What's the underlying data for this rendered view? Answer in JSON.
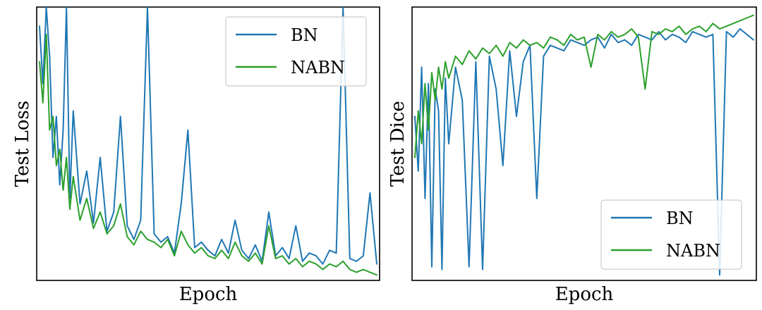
{
  "chart_data": [
    {
      "type": "line",
      "xlabel": "Epoch",
      "ylabel": "Test Loss",
      "xlim": [
        0,
        100
      ],
      "ylim": [
        0,
        1
      ],
      "ticks_visible": false,
      "grid": false,
      "legend_position": "top-right",
      "series": [
        {
          "name": "BN",
          "color": "#1f77b4",
          "x": [
            0,
            1,
            2,
            3,
            4,
            5,
            6,
            7,
            8,
            9,
            10,
            12,
            14,
            16,
            18,
            20,
            22,
            24,
            26,
            28,
            30,
            32,
            34,
            36,
            38,
            40,
            42,
            44,
            46,
            48,
            50,
            52,
            54,
            56,
            58,
            60,
            62,
            64,
            66,
            68,
            70,
            72,
            74,
            76,
            78,
            80,
            82,
            84,
            86,
            88,
            90,
            92,
            94,
            96,
            98,
            100
          ],
          "y": [
            0.93,
            0.72,
            1.0,
            0.82,
            0.45,
            0.6,
            0.35,
            0.55,
            1.0,
            0.3,
            0.62,
            0.28,
            0.4,
            0.21,
            0.45,
            0.18,
            0.25,
            0.6,
            0.2,
            0.15,
            0.22,
            1.0,
            0.17,
            0.14,
            0.16,
            0.1,
            0.28,
            0.55,
            0.12,
            0.14,
            0.11,
            0.09,
            0.15,
            0.1,
            0.22,
            0.11,
            0.08,
            0.13,
            0.07,
            0.25,
            0.09,
            0.12,
            0.08,
            0.2,
            0.07,
            0.1,
            0.09,
            0.06,
            0.11,
            0.1,
            1.0,
            0.08,
            0.07,
            0.09,
            0.32,
            0.06
          ]
        },
        {
          "name": "NABN",
          "color": "#2ca02c",
          "x": [
            0,
            1,
            2,
            3,
            4,
            5,
            6,
            7,
            8,
            9,
            10,
            12,
            14,
            16,
            18,
            20,
            22,
            24,
            26,
            28,
            30,
            32,
            34,
            36,
            38,
            40,
            42,
            44,
            46,
            48,
            50,
            52,
            54,
            56,
            58,
            60,
            62,
            64,
            66,
            68,
            70,
            72,
            74,
            76,
            78,
            80,
            82,
            84,
            86,
            88,
            90,
            92,
            94,
            96,
            98,
            100
          ],
          "y": [
            0.8,
            0.65,
            0.9,
            0.55,
            0.6,
            0.42,
            0.48,
            0.33,
            0.45,
            0.26,
            0.38,
            0.22,
            0.3,
            0.19,
            0.25,
            0.17,
            0.2,
            0.28,
            0.16,
            0.13,
            0.18,
            0.15,
            0.14,
            0.12,
            0.15,
            0.09,
            0.18,
            0.13,
            0.1,
            0.12,
            0.09,
            0.08,
            0.11,
            0.08,
            0.14,
            0.09,
            0.07,
            0.1,
            0.06,
            0.2,
            0.08,
            0.09,
            0.06,
            0.08,
            0.05,
            0.07,
            0.06,
            0.04,
            0.06,
            0.05,
            0.07,
            0.04,
            0.03,
            0.04,
            0.03,
            0.02
          ]
        }
      ]
    },
    {
      "type": "line",
      "xlabel": "Epoch",
      "ylabel": "Test Dice",
      "xlim": [
        0,
        100
      ],
      "ylim": [
        0,
        1
      ],
      "ticks_visible": false,
      "grid": false,
      "legend_position": "bottom-right",
      "series": [
        {
          "name": "BN",
          "color": "#1f77b4",
          "x": [
            0,
            1,
            2,
            3,
            4,
            5,
            6,
            7,
            8,
            9,
            10,
            12,
            14,
            16,
            18,
            20,
            22,
            24,
            26,
            28,
            30,
            32,
            34,
            36,
            38,
            40,
            42,
            44,
            46,
            48,
            50,
            52,
            54,
            56,
            58,
            60,
            62,
            64,
            66,
            68,
            70,
            72,
            74,
            76,
            78,
            80,
            82,
            84,
            86,
            88,
            90,
            92,
            94,
            96,
            98,
            100
          ],
          "y": [
            0.6,
            0.4,
            0.78,
            0.3,
            0.72,
            0.05,
            0.7,
            0.62,
            0.04,
            0.74,
            0.5,
            0.78,
            0.66,
            0.05,
            0.8,
            0.04,
            0.82,
            0.7,
            0.42,
            0.84,
            0.6,
            0.8,
            0.86,
            0.3,
            0.82,
            0.86,
            0.85,
            0.84,
            0.88,
            0.87,
            0.86,
            0.88,
            0.89,
            0.85,
            0.9,
            0.87,
            0.88,
            0.86,
            0.9,
            0.89,
            0.88,
            0.91,
            0.88,
            0.9,
            0.89,
            0.87,
            0.91,
            0.9,
            0.89,
            0.9,
            0.02,
            0.91,
            0.89,
            0.92,
            0.9,
            0.88
          ]
        },
        {
          "name": "NABN",
          "color": "#2ca02c",
          "x": [
            0,
            1,
            2,
            3,
            4,
            5,
            6,
            7,
            8,
            9,
            10,
            12,
            14,
            16,
            18,
            20,
            22,
            24,
            26,
            28,
            30,
            32,
            34,
            36,
            38,
            40,
            42,
            44,
            46,
            48,
            50,
            52,
            54,
            56,
            58,
            60,
            62,
            64,
            66,
            68,
            70,
            72,
            74,
            76,
            78,
            80,
            82,
            84,
            86,
            88,
            90,
            92,
            94,
            96,
            98,
            100
          ],
          "y": [
            0.45,
            0.62,
            0.5,
            0.72,
            0.55,
            0.76,
            0.66,
            0.78,
            0.7,
            0.8,
            0.74,
            0.82,
            0.79,
            0.84,
            0.81,
            0.85,
            0.83,
            0.86,
            0.82,
            0.87,
            0.85,
            0.88,
            0.86,
            0.87,
            0.85,
            0.89,
            0.88,
            0.86,
            0.9,
            0.88,
            0.89,
            0.78,
            0.9,
            0.88,
            0.91,
            0.89,
            0.9,
            0.92,
            0.89,
            0.7,
            0.91,
            0.9,
            0.92,
            0.91,
            0.93,
            0.9,
            0.92,
            0.93,
            0.91,
            0.94,
            0.92,
            0.93,
            0.94,
            0.95,
            0.96,
            0.97
          ]
        }
      ]
    }
  ]
}
